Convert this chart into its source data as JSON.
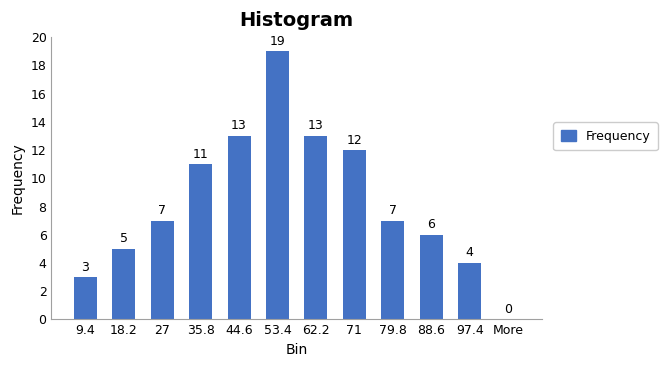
{
  "title": "Histogram",
  "xlabel": "Bin",
  "ylabel": "Frequency",
  "categories": [
    "9.4",
    "18.2",
    "27",
    "35.8",
    "44.6",
    "53.4",
    "62.2",
    "71",
    "79.8",
    "88.6",
    "97.4",
    "More"
  ],
  "values": [
    3,
    5,
    7,
    11,
    13,
    19,
    13,
    12,
    7,
    6,
    4,
    0
  ],
  "bar_color": "#4472C4",
  "ylim": [
    0,
    20
  ],
  "yticks": [
    0,
    2,
    4,
    6,
    8,
    10,
    12,
    14,
    16,
    18,
    20
  ],
  "title_fontsize": 14,
  "axis_label_fontsize": 10,
  "tick_fontsize": 9,
  "annotation_fontsize": 9,
  "legend_label": "Frequency",
  "background_color": "#ffffff",
  "bar_edge_color": "none",
  "figure_border_color": "#c0c0c0"
}
